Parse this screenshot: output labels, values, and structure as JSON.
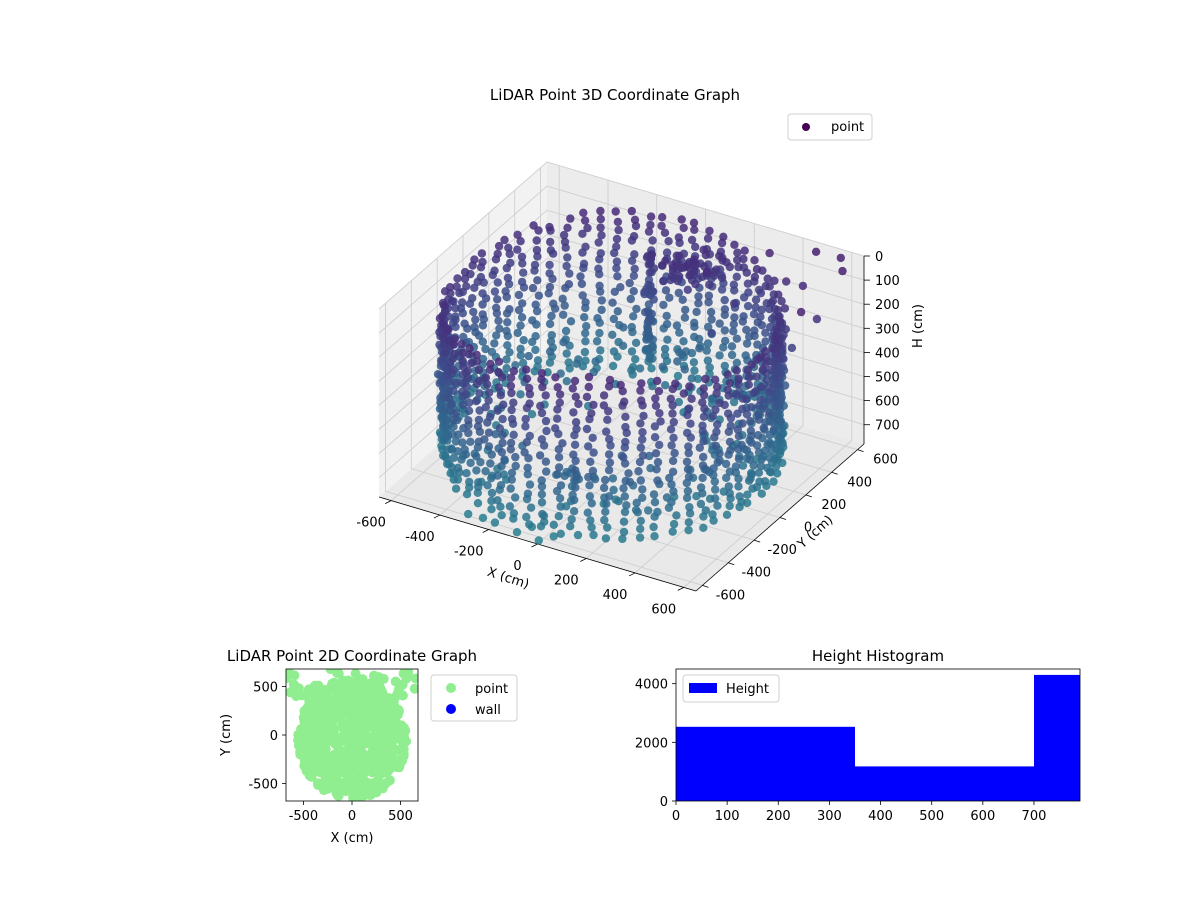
{
  "chart_data": [
    {
      "id": "scatter3d",
      "type": "scatter",
      "projection": "3d",
      "title": "LiDAR Point 3D Coordinate Graph",
      "xlabel": "X (cm)",
      "ylabel": "Y (cm)",
      "zlabel": "H (cm)",
      "xticks": [
        -600,
        -400,
        -200,
        0,
        200,
        400,
        600
      ],
      "yticks": [
        -600,
        -400,
        -200,
        0,
        200,
        400,
        600
      ],
      "zticks": [
        0,
        100,
        200,
        300,
        400,
        500,
        600,
        700
      ],
      "xlim": [
        -650,
        650
      ],
      "ylim": [
        -650,
        650
      ],
      "zlim": [
        0,
        780
      ],
      "z_inverted": true,
      "grid": true,
      "colormap": "viridis",
      "legend": {
        "placement": "top-right",
        "entries": [
          {
            "label": "point",
            "color": "#440154"
          }
        ]
      },
      "series": [
        {
          "name": "point",
          "ring": {
            "shape": "ellipse",
            "x_range": [
              -650,
              560
            ],
            "y_range": [
              -640,
              660
            ],
            "h_range": [
              60,
              720
            ]
          },
          "pillar": {
            "x": -150,
            "y": 500,
            "h_range": [
              150,
              600
            ]
          },
          "scattered_outliers": [
            {
              "x": 480,
              "y": 600,
              "h": 10
            },
            {
              "x": 560,
              "y": 640,
              "h": 30
            },
            {
              "x": 620,
              "y": 540,
              "h": 20
            },
            {
              "x": 400,
              "y": 520,
              "h": 120
            },
            {
              "x": 500,
              "y": 460,
              "h": 80
            },
            {
              "x": 600,
              "y": 380,
              "h": 150
            },
            {
              "x": 300,
              "y": 580,
              "h": 60
            },
            {
              "x": 250,
              "y": 400,
              "h": 200
            },
            {
              "x": 620,
              "y": 220,
              "h": 40
            },
            {
              "x": 540,
              "y": 300,
              "h": 250
            },
            {
              "x": -300,
              "y": -620,
              "h": 760
            },
            {
              "x": -250,
              "y": -600,
              "h": 770
            },
            {
              "x": -180,
              "y": -640,
              "h": 750
            },
            {
              "x": -100,
              "y": -620,
              "h": 775
            },
            {
              "x": -60,
              "y": -580,
              "h": 760
            },
            {
              "x": 0,
              "y": -640,
              "h": 770
            },
            {
              "x": 40,
              "y": -600,
              "h": 760
            },
            {
              "x": -620,
              "y": -200,
              "h": 560
            },
            {
              "x": 200,
              "y": 320,
              "h": 300
            },
            {
              "x": 420,
              "y": 120,
              "h": 380
            }
          ]
        }
      ]
    },
    {
      "id": "scatter2d",
      "type": "scatter",
      "title": "LiDAR Point 2D Coordinate Graph",
      "xlabel": "X (cm)",
      "ylabel": "Y (cm)",
      "xticks": [
        -500,
        0,
        500
      ],
      "yticks": [
        -500,
        0,
        500
      ],
      "xlim": [
        -680,
        680
      ],
      "ylim": [
        -680,
        680
      ],
      "legend": {
        "placement": "outside-right",
        "entries": [
          {
            "label": "point",
            "color": "#90ee90"
          },
          {
            "label": "wall",
            "color": "#0000ff"
          }
        ]
      },
      "series": [
        {
          "name": "point",
          "color": "#90ee90",
          "extent": {
            "x": [
              -680,
              680
            ],
            "y": [
              -680,
              680
            ]
          }
        },
        {
          "name": "wall",
          "color": "#0000ff",
          "values": []
        }
      ]
    },
    {
      "id": "histogram",
      "type": "bar",
      "title": "Height Histogram",
      "xlabel": "",
      "ylabel": "",
      "xticks": [
        0,
        100,
        200,
        300,
        400,
        500,
        600,
        700
      ],
      "yticks": [
        0,
        2000,
        4000
      ],
      "xlim": [
        0,
        790
      ],
      "ylim": [
        0,
        4500
      ],
      "bin_edges": [
        0,
        350,
        700,
        790
      ],
      "values": [
        2530,
        1180,
        4300
      ],
      "color": "#0000ff",
      "legend": {
        "placement": "top-left",
        "entries": [
          {
            "label": "Height",
            "color": "#0000ff"
          }
        ]
      }
    }
  ]
}
